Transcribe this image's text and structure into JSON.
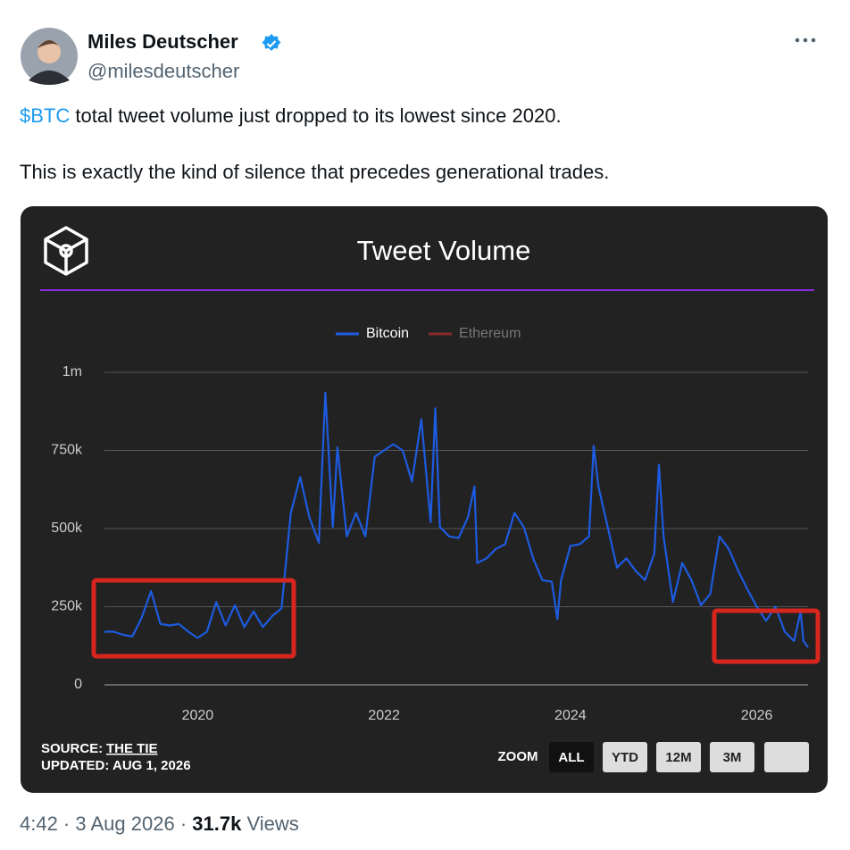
{
  "tweet": {
    "author": "Miles Deutscher",
    "handle": "@milesdeutscher",
    "cashtag": "$BTC",
    "text": "total tweet volume just dropped to its lowest since 2020.",
    "text2": "This is exactly the kind of silence that precedes generational trades.",
    "time": "4:42 · 3 Aug 2026",
    "separator": "·",
    "views": "31.7k",
    "views_label": "Views"
  },
  "chart_data": {
    "type": "line",
    "title": "Tweet Volume",
    "x": [
      2019.0,
      2019.1,
      2019.2,
      2019.3,
      2019.4,
      2019.5,
      2019.6,
      2019.7,
      2019.8,
      2019.9,
      2020.0,
      2020.1,
      2020.2,
      2020.3,
      2020.4,
      2020.5,
      2020.6,
      2020.7,
      2020.8,
      2020.9,
      2021.0,
      2021.1,
      2021.2,
      2021.3,
      2021.37,
      2021.45,
      2021.5,
      2021.6,
      2021.7,
      2021.8,
      2021.9,
      2022.0,
      2022.1,
      2022.2,
      2022.3,
      2022.4,
      2022.5,
      2022.55,
      2022.6,
      2022.7,
      2022.8,
      2022.9,
      2022.97,
      2023.0,
      2023.1,
      2023.2,
      2023.3,
      2023.4,
      2023.5,
      2023.6,
      2023.7,
      2023.8,
      2023.86,
      2023.9,
      2024.0,
      2024.1,
      2024.2,
      2024.25,
      2024.3,
      2024.4,
      2024.5,
      2024.6,
      2024.7,
      2024.8,
      2024.9,
      2024.95,
      2025.0,
      2025.1,
      2025.2,
      2025.3,
      2025.4,
      2025.5,
      2025.6,
      2025.7,
      2025.8,
      2025.9,
      2026.0,
      2026.1,
      2026.2,
      2026.3,
      2026.4,
      2026.47,
      2026.5,
      2026.55
    ],
    "series": [
      {
        "name": "Bitcoin",
        "color": "#1d5be0",
        "values": [
          170000,
          170000,
          160000,
          155000,
          215000,
          300000,
          195000,
          190000,
          195000,
          170000,
          150000,
          170000,
          265000,
          190000,
          255000,
          185000,
          235000,
          185000,
          220000,
          245000,
          550000,
          665000,
          535000,
          455000,
          935000,
          505000,
          760000,
          475000,
          550000,
          475000,
          730000,
          750000,
          770000,
          750000,
          650000,
          850000,
          520000,
          885000,
          505000,
          475000,
          470000,
          535000,
          635000,
          390000,
          405000,
          435000,
          450000,
          550000,
          505000,
          405000,
          335000,
          330000,
          210000,
          335000,
          445000,
          450000,
          475000,
          765000,
          635000,
          505000,
          375000,
          405000,
          365000,
          335000,
          420000,
          705000,
          475000,
          265000,
          390000,
          335000,
          255000,
          290000,
          475000,
          435000,
          365000,
          305000,
          250000,
          205000,
          250000,
          170000,
          140000,
          235000,
          140000,
          120000
        ]
      },
      {
        "name": "Ethereum",
        "color": "#8a2a2a",
        "visible": false
      }
    ],
    "xlim": [
      2019.0,
      2026.55
    ],
    "xticks": [
      2020,
      2022,
      2024,
      2026
    ],
    "ylim": [
      0,
      1000000
    ],
    "yticks": [
      0,
      {
        "value": 250000,
        "label": "250k"
      },
      {
        "value": 500000,
        "label": "500k"
      },
      {
        "value": 750000,
        "label": "750k"
      },
      {
        "value": 1000000,
        "label": "1m"
      }
    ],
    "grid": true,
    "source_label": "SOURCE:",
    "source": "THE TIE",
    "updated": "UPDATED: AUG 1, 2026",
    "zoom": {
      "label": "ZOOM",
      "options": [
        "ALL",
        "YTD",
        "12M",
        "3M"
      ],
      "selected": "ALL"
    }
  }
}
